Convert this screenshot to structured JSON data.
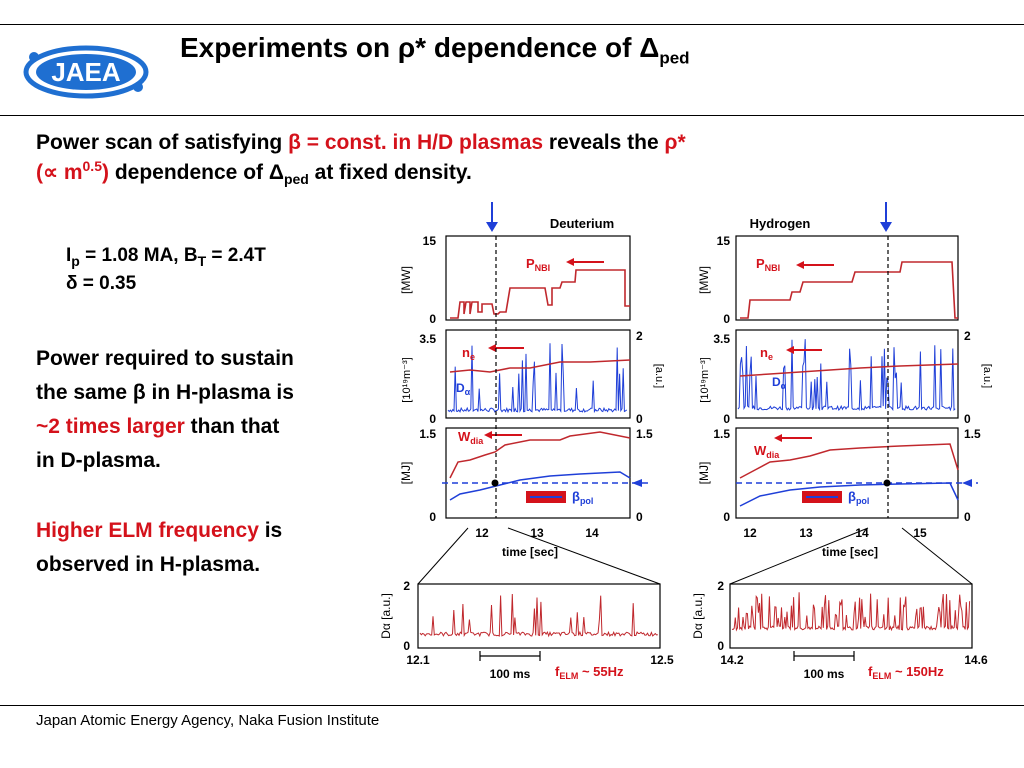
{
  "logo": {
    "text": "JAEA"
  },
  "header": {
    "title_pre": "Experiments on ",
    "title_rho": "ρ*",
    "title_mid": " dependence of ",
    "title_delta": "Δ",
    "title_sub": "ped"
  },
  "intro": {
    "p1": "Power scan of satisfying ",
    "p1_red": "β = const. in H/D plasmas",
    "p2": " reveals the ",
    "p2_red": "ρ*",
    "p3_red_a": "(∝ m",
    "p3_red_sup": "0.5",
    "p3_red_b": ")",
    "p4": " dependence of ",
    "p4_delta": "Δ",
    "p4_sub": "ped",
    "p5": " at fixed density."
  },
  "params": {
    "ip_label": "I",
    "ip_sub": "p",
    "ip_value": " = 1.08 MA, B",
    "bt_sub": "T",
    "bt_value": " = 2.4T",
    "delta_line": "δ = 0.35"
  },
  "text_block1": {
    "line1": "Power required to sustain",
    "line2": "the same β in H-plasma is",
    "line3_red": "~2 times larger",
    "line3": " than that",
    "line4": "in D-plasma."
  },
  "text_block2": {
    "red": "Higher ELM frequency",
    "rest1": " is",
    "line2": "observed in H-plasma."
  },
  "footer": {
    "text": "Japan Atomic Energy Agency, Naka Fusion Institute"
  },
  "figure": {
    "deuterium_label": "Deuterium",
    "hydrogen_label": "Hydrogen",
    "y15": "15",
    "y0": "0",
    "mw": "[MW]",
    "y35": "3.5",
    "y2": "2",
    "units_n": "[10¹⁹m⁻³]",
    "units_au": "[a.u.]",
    "y15b": "1.5",
    "mj": "[MJ]",
    "pnbi": "P",
    "pnbi_sub": "NBI",
    "ne": "n",
    "ne_sub": "e",
    "da": "D",
    "da_sub": "α",
    "wdia": "W",
    "wdia_sub": "dia",
    "bpol": "β",
    "bpol_sub": "pol",
    "time": "time [sec]",
    "d_ticks": [
      "12",
      "13",
      "14"
    ],
    "h_ticks": [
      "12",
      "13",
      "14",
      "15"
    ],
    "zoom_ylabel": "Dα [a.u.]",
    "zoom_y2": "2",
    "zoom_y0": "0",
    "d_zoom_left": "12.1",
    "d_zoom_right": "12.5",
    "h_zoom_left": "14.2",
    "h_zoom_right": "14.6",
    "scale": "100 ms",
    "d_felm": "f",
    "felm_sub": "ELM",
    "d_felm_val": " ~ 55Hz",
    "h_felm_val": " ~ 150Hz"
  },
  "colors": {
    "accent_red": "#d4121b",
    "trace_red": "#c0282d",
    "trace_blue": "#1f3fd8",
    "logo_blue": "#1f6fd1"
  }
}
